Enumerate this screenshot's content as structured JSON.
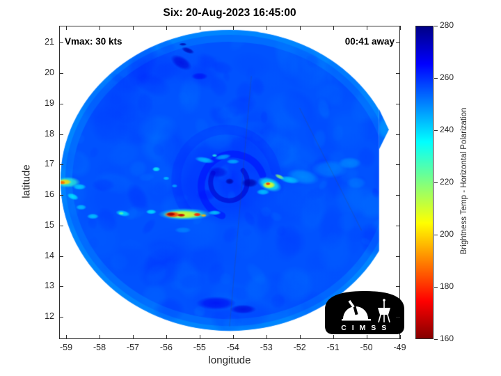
{
  "title": "Six: 20-Aug-2023 16:45:00",
  "annotations": {
    "vmax": "Vmax: 30 kts",
    "eta": "00:41 away"
  },
  "logo": {
    "text": "C I M S S"
  },
  "chart_data": {
    "type": "heatmap",
    "title": "Six: 20-Aug-2023 16:45:00",
    "xlabel": "longitude",
    "ylabel": "latitude",
    "xlim": [
      -59.21,
      -48.99
    ],
    "ylim": [
      11.27,
      21.56
    ],
    "x_ticks": [
      -59,
      -58,
      -57,
      -56,
      -55,
      -54,
      -53,
      -52,
      -51,
      -50,
      -49
    ],
    "y_ticks": [
      12,
      13,
      14,
      15,
      16,
      17,
      18,
      19,
      20,
      21
    ],
    "grid": false,
    "colorbar": {
      "label": "Brightness Temp - Horizontal Polarization",
      "min": 160,
      "max": 280,
      "ticks": [
        160,
        180,
        200,
        220,
        240,
        260,
        280
      ],
      "orientation": "vertical",
      "position": "right",
      "colormap": "jet-reversed (high temp = blue, low temp = red)",
      "jet_stops": [
        [
          0,
          "#000085"
        ],
        [
          0.12,
          "#0000ff"
        ],
        [
          0.37,
          "#00ffff"
        ],
        [
          0.5,
          "#80ff80"
        ],
        [
          0.63,
          "#ffff00"
        ],
        [
          0.88,
          "#ff0000"
        ],
        [
          1,
          "#850000"
        ]
      ]
    },
    "swath": {
      "center_lon": -54.1,
      "center_lat": 16.48,
      "rx_deg": 5.07,
      "ry_deg": 4.94,
      "right_cut_lon": -49.62,
      "base_temp": 256,
      "rim_temps": [
        250,
        247
      ],
      "notch": [
        [
          -49.62,
          18.82
        ],
        [
          -49.33,
          18.15
        ],
        [
          -49.62,
          17.5
        ]
      ]
    },
    "ambient": [
      {
        "lon": -54.2,
        "lat": 16.5,
        "rx": 1.8,
        "ry": 1.5,
        "rot": 0,
        "temp": 262,
        "a": 0.5
      },
      {
        "lon": -53.0,
        "lat": 17.8,
        "rx": 0.9,
        "ry": 0.6,
        "rot": 0,
        "temp": 260,
        "a": 0.4
      },
      {
        "lon": -55.6,
        "lat": 14.1,
        "rx": 1.2,
        "ry": 0.9,
        "rot": 0,
        "temp": 257,
        "a": 0.35
      },
      {
        "lon": -52.6,
        "lat": 15.6,
        "rx": 1.0,
        "ry": 0.8,
        "rot": 0,
        "temp": 258,
        "a": 0.35
      }
    ],
    "noise": {
      "seed": 11,
      "count": 250,
      "temp_min": 249,
      "temp_max": 264,
      "alpha": 0.18
    },
    "arcs": [
      {
        "cx": -54.12,
        "cy": 16.42,
        "r": 0.55,
        "a0": -40,
        "a1": 210,
        "temp": 272,
        "w": 7,
        "a": 0.6
      },
      {
        "cx": -54.0,
        "cy": 16.3,
        "r": 0.95,
        "a0": 110,
        "a1": 340,
        "temp": 266,
        "w": 10,
        "a": 0.45
      },
      {
        "cx": -54.2,
        "cy": 16.5,
        "r": 1.5,
        "a0": 140,
        "a1": 350,
        "temp": 261,
        "w": 14,
        "a": 0.3
      }
    ],
    "features": [
      {
        "lon": -55.45,
        "lat": 15.37,
        "rx": 0.8,
        "ry": 0.2,
        "rot": 0,
        "temp": 230,
        "a": 0.85
      },
      {
        "lon": -55.5,
        "lat": 15.36,
        "rx": 0.6,
        "ry": 0.14,
        "rot": 0,
        "temp": 207,
        "a": 0.9
      },
      {
        "lon": -55.82,
        "lat": 15.36,
        "rx": 0.24,
        "ry": 0.1,
        "rot": 0,
        "temp": 180,
        "a": 0.95
      },
      {
        "lon": -55.86,
        "lat": 15.37,
        "rx": 0.14,
        "ry": 0.06,
        "rot": 0,
        "temp": 163,
        "a": 1
      },
      {
        "lon": -55.55,
        "lat": 15.34,
        "rx": 0.13,
        "ry": 0.055,
        "rot": 0,
        "temp": 167,
        "a": 1
      },
      {
        "lon": -55.07,
        "lat": 15.36,
        "rx": 0.12,
        "ry": 0.06,
        "rot": 0,
        "temp": 178,
        "a": 1
      },
      {
        "lon": -54.88,
        "lat": 15.33,
        "rx": 0.09,
        "ry": 0.05,
        "rot": 0,
        "temp": 196,
        "a": 0.95
      },
      {
        "lon": -54.55,
        "lat": 15.42,
        "rx": 0.2,
        "ry": 0.08,
        "rot": 0,
        "temp": 235,
        "a": 0.7
      },
      {
        "lon": -52.9,
        "lat": 16.35,
        "rx": 0.38,
        "ry": 0.22,
        "rot": 20,
        "temp": 233,
        "a": 0.85
      },
      {
        "lon": -52.92,
        "lat": 16.33,
        "rx": 0.2,
        "ry": 0.12,
        "rot": 0,
        "temp": 206,
        "a": 0.95
      },
      {
        "lon": -52.95,
        "lat": 16.37,
        "rx": 0.08,
        "ry": 0.05,
        "rot": 0,
        "temp": 180,
        "a": 1
      },
      {
        "lon": -52.6,
        "lat": 16.6,
        "rx": 0.16,
        "ry": 0.07,
        "rot": 25,
        "temp": 218,
        "a": 0.85
      },
      {
        "lon": -53.1,
        "lat": 16.1,
        "rx": 0.2,
        "ry": 0.1,
        "rot": 0,
        "temp": 238,
        "a": 0.7
      },
      {
        "lon": -58.95,
        "lat": 16.42,
        "rx": 0.38,
        "ry": 0.18,
        "rot": 0,
        "temp": 230,
        "a": 0.85
      },
      {
        "lon": -59.05,
        "lat": 16.43,
        "rx": 0.22,
        "ry": 0.1,
        "rot": 0,
        "temp": 200,
        "a": 0.95
      },
      {
        "lon": -59.12,
        "lat": 16.41,
        "rx": 0.1,
        "ry": 0.06,
        "rot": 0,
        "temp": 186,
        "a": 1
      },
      {
        "lon": -58.6,
        "lat": 16.27,
        "rx": 0.2,
        "ry": 0.1,
        "rot": 0,
        "temp": 238,
        "a": 0.75
      },
      {
        "lon": -58.8,
        "lat": 15.95,
        "rx": 0.18,
        "ry": 0.1,
        "rot": 20,
        "temp": 236,
        "a": 0.8
      },
      {
        "lon": -58.55,
        "lat": 15.6,
        "rx": 0.16,
        "ry": 0.09,
        "rot": 0,
        "temp": 240,
        "a": 0.75
      },
      {
        "lon": -58.2,
        "lat": 15.3,
        "rx": 0.18,
        "ry": 0.09,
        "rot": 0,
        "temp": 239,
        "a": 0.75
      },
      {
        "lon": -57.3,
        "lat": 15.4,
        "rx": 0.22,
        "ry": 0.1,
        "rot": 10,
        "temp": 237,
        "a": 0.8
      },
      {
        "lon": -57.35,
        "lat": 15.4,
        "rx": 0.08,
        "ry": 0.05,
        "rot": 0,
        "temp": 224,
        "a": 0.85
      },
      {
        "lon": -56.45,
        "lat": 15.45,
        "rx": 0.16,
        "ry": 0.08,
        "rot": 0,
        "temp": 236,
        "a": 0.8
      },
      {
        "lon": -56.3,
        "lat": 16.85,
        "rx": 0.12,
        "ry": 0.08,
        "rot": 0,
        "temp": 234,
        "a": 0.85
      },
      {
        "lon": -56.0,
        "lat": 16.55,
        "rx": 0.1,
        "ry": 0.06,
        "rot": 0,
        "temp": 240,
        "a": 0.75
      },
      {
        "lon": -55.75,
        "lat": 16.3,
        "rx": 0.09,
        "ry": 0.06,
        "rot": 0,
        "temp": 242,
        "a": 0.7
      },
      {
        "lon": -54.85,
        "lat": 17.15,
        "rx": 0.3,
        "ry": 0.1,
        "rot": 10,
        "temp": 240,
        "a": 0.75
      },
      {
        "lon": -54.3,
        "lat": 17.25,
        "rx": 0.25,
        "ry": 0.09,
        "rot": -10,
        "temp": 242,
        "a": 0.7
      },
      {
        "lon": -54.0,
        "lat": 17.1,
        "rx": 0.2,
        "ry": 0.08,
        "rot": 0,
        "temp": 241,
        "a": 0.7
      },
      {
        "lon": -54.55,
        "lat": 17.3,
        "rx": 0.08,
        "ry": 0.05,
        "rot": 0,
        "temp": 231,
        "a": 0.85
      },
      {
        "lon": -52.3,
        "lat": 16.5,
        "rx": 0.3,
        "ry": 0.12,
        "rot": 10,
        "temp": 239,
        "a": 0.75
      },
      {
        "lon": -51.9,
        "lat": 16.6,
        "rx": 0.5,
        "ry": 0.25,
        "rot": 10,
        "temp": 247,
        "a": 0.65
      },
      {
        "lon": -51.1,
        "lat": 16.85,
        "rx": 0.55,
        "ry": 0.3,
        "rot": 0,
        "temp": 249,
        "a": 0.6
      },
      {
        "lon": -50.5,
        "lat": 17.05,
        "rx": 0.35,
        "ry": 0.2,
        "rot": 0,
        "temp": 247,
        "a": 0.6
      },
      {
        "lon": -50.3,
        "lat": 16.4,
        "rx": 0.3,
        "ry": 0.2,
        "rot": 0,
        "temp": 250,
        "a": 0.55
      },
      {
        "lon": -55.55,
        "lat": 20.35,
        "rx": 0.35,
        "ry": 0.2,
        "rot": 30,
        "temp": 270,
        "a": 0.7
      },
      {
        "lon": -55.35,
        "lat": 20.75,
        "rx": 0.2,
        "ry": 0.09,
        "rot": 20,
        "temp": 275,
        "a": 0.8
      },
      {
        "lon": -55.5,
        "lat": 20.95,
        "rx": 0.12,
        "ry": 0.05,
        "rot": 0,
        "temp": 276,
        "a": 0.8
      },
      {
        "lon": -55.0,
        "lat": 19.9,
        "rx": 0.25,
        "ry": 0.12,
        "rot": 0,
        "temp": 267,
        "a": 0.6
      },
      {
        "lon": -54.5,
        "lat": 12.45,
        "rx": 0.6,
        "ry": 0.22,
        "rot": 0,
        "temp": 267,
        "a": 0.7
      },
      {
        "lon": -53.7,
        "lat": 12.25,
        "rx": 0.4,
        "ry": 0.15,
        "rot": 0,
        "temp": 270,
        "a": 0.7
      },
      {
        "lon": -53.5,
        "lat": 16.4,
        "rx": 0.25,
        "ry": 0.15,
        "rot": 0,
        "temp": 276,
        "a": 0.8
      },
      {
        "lon": -54.1,
        "lat": 16.45,
        "rx": 0.13,
        "ry": 0.1,
        "rot": 0,
        "temp": 277,
        "a": 0.8
      },
      {
        "lon": -54.45,
        "lat": 16.75,
        "rx": 0.3,
        "ry": 0.18,
        "rot": 0,
        "temp": 270,
        "a": 0.6
      },
      {
        "lon": -54.8,
        "lat": 16.0,
        "rx": 0.3,
        "ry": 0.2,
        "rot": 0,
        "temp": 264,
        "a": 0.5
      },
      {
        "lon": -55.5,
        "lat": 14.85,
        "rx": 0.25,
        "ry": 0.1,
        "rot": 0,
        "temp": 246,
        "a": 0.5
      }
    ],
    "seams": [
      [
        -53.45,
        19.9,
        -54.1,
        11.7
      ],
      [
        -52.0,
        18.85,
        -50.15,
        14.85
      ]
    ]
  }
}
